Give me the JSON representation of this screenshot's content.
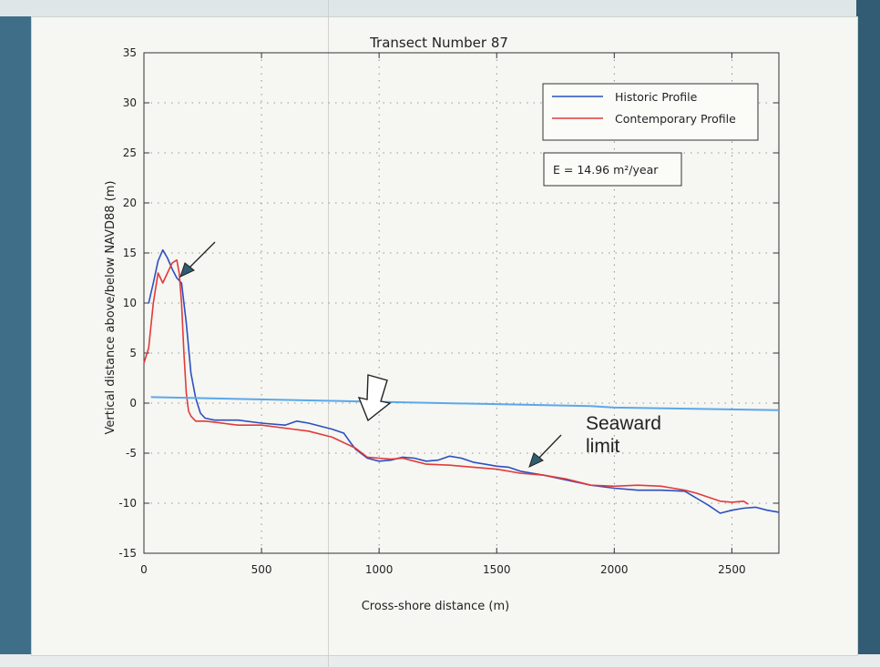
{
  "chart_data": {
    "type": "line",
    "title": "Transect Number 87",
    "xlabel": "Cross-shore distance (m)",
    "ylabel": "Vertical distance above/below NAVD88 (m)",
    "xlim": [
      0,
      2700
    ],
    "ylim": [
      -15,
      35
    ],
    "xticks": [
      0,
      500,
      1000,
      1500,
      2000,
      2500
    ],
    "yticks": [
      -15,
      -10,
      -5,
      0,
      5,
      10,
      15,
      20,
      25,
      30,
      35
    ],
    "grid": true,
    "legend_position": "top-right",
    "series": [
      {
        "name": "Historic Profile",
        "color": "#2b4fc0",
        "x": [
          20,
          40,
          60,
          80,
          100,
          120,
          140,
          160,
          180,
          200,
          220,
          240,
          260,
          300,
          400,
          500,
          600,
          650,
          700,
          800,
          850,
          880,
          900,
          950,
          1000,
          1050,
          1100,
          1150,
          1200,
          1250,
          1300,
          1350,
          1400,
          1450,
          1500,
          1550,
          1600,
          1650,
          1700,
          1800,
          1900,
          2000,
          2100,
          2200,
          2300,
          2350,
          2400,
          2450,
          2500,
          2550,
          2600,
          2650,
          2700
        ],
        "y": [
          10,
          12,
          14.2,
          15.3,
          14.5,
          13.4,
          12.5,
          12,
          8,
          3,
          0.5,
          -1,
          -1.5,
          -1.7,
          -1.7,
          -2,
          -2.2,
          -1.8,
          -2,
          -2.6,
          -3,
          -4,
          -4.6,
          -5.5,
          -5.8,
          -5.7,
          -5.4,
          -5.5,
          -5.8,
          -5.7,
          -5.3,
          -5.5,
          -5.9,
          -6.1,
          -6.3,
          -6.4,
          -6.8,
          -7,
          -7.2,
          -7.7,
          -8.2,
          -8.5,
          -8.7,
          -8.7,
          -8.8,
          -9.5,
          -10.2,
          -11,
          -10.7,
          -10.5,
          -10.4,
          -10.7,
          -10.9
        ]
      },
      {
        "name": "Contemporary Profile",
        "color": "#e23a3a",
        "x": [
          0,
          20,
          40,
          60,
          80,
          100,
          120,
          140,
          150,
          160,
          170,
          180,
          190,
          200,
          220,
          260,
          300,
          400,
          500,
          600,
          700,
          800,
          900,
          950,
          1000,
          1050,
          1100,
          1150,
          1200,
          1300,
          1400,
          1500,
          1600,
          1700,
          1800,
          1900,
          2000,
          2100,
          2200,
          2250,
          2300,
          2350,
          2400,
          2450,
          2500,
          2550,
          2570
        ],
        "y": [
          4,
          5.5,
          10,
          13,
          12,
          13,
          14,
          14.3,
          13,
          10,
          5,
          1,
          -0.8,
          -1.3,
          -1.8,
          -1.8,
          -1.9,
          -2.2,
          -2.2,
          -2.5,
          -2.8,
          -3.4,
          -4.5,
          -5.4,
          -5.5,
          -5.6,
          -5.5,
          -5.8,
          -6.1,
          -6.2,
          -6.4,
          -6.6,
          -7,
          -7.2,
          -7.6,
          -8.2,
          -8.3,
          -8.2,
          -8.3,
          -8.5,
          -8.7,
          -9,
          -9.4,
          -9.8,
          -9.9,
          -9.8,
          -10.1
        ]
      },
      {
        "name": "",
        "color": "#5aa8ea",
        "x": [
          30,
          1900,
          2000,
          2700
        ],
        "y": [
          0.6,
          -0.3,
          -0.45,
          -0.7
        ]
      }
    ],
    "annotations": [
      {
        "text": "E = 14.96 m²/year"
      },
      {
        "text": "Seaward limit",
        "lines": [
          "Seaward",
          "limit"
        ]
      }
    ]
  }
}
